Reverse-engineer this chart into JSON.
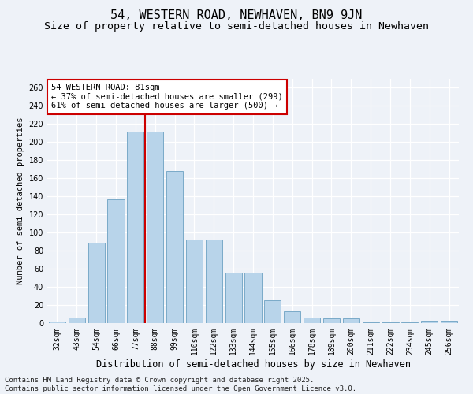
{
  "title": "54, WESTERN ROAD, NEWHAVEN, BN9 9JN",
  "subtitle": "Size of property relative to semi-detached houses in Newhaven",
  "xlabel": "Distribution of semi-detached houses by size in Newhaven",
  "ylabel": "Number of semi-detached properties",
  "categories": [
    "32sqm",
    "43sqm",
    "54sqm",
    "66sqm",
    "77sqm",
    "88sqm",
    "99sqm",
    "110sqm",
    "122sqm",
    "133sqm",
    "144sqm",
    "155sqm",
    "166sqm",
    "178sqm",
    "189sqm",
    "200sqm",
    "211sqm",
    "222sqm",
    "234sqm",
    "245sqm",
    "256sqm"
  ],
  "values": [
    2,
    6,
    89,
    137,
    212,
    212,
    168,
    92,
    92,
    56,
    56,
    25,
    13,
    6,
    5,
    5,
    1,
    1,
    1,
    3,
    3
  ],
  "bar_color": "#b8d4ea",
  "bar_edge_color": "#7aaac8",
  "vline_x_index": 4.5,
  "vline_color": "#cc0000",
  "annotation_title": "54 WESTERN ROAD: 81sqm",
  "annotation_line1": "← 37% of semi-detached houses are smaller (299)",
  "annotation_line2": "61% of semi-detached houses are larger (500) →",
  "annotation_box_facecolor": "#ffffff",
  "annotation_box_edgecolor": "#cc0000",
  "ylim": [
    0,
    270
  ],
  "yticks": [
    0,
    20,
    40,
    60,
    80,
    100,
    120,
    140,
    160,
    180,
    200,
    220,
    240,
    260
  ],
  "footnote1": "Contains HM Land Registry data © Crown copyright and database right 2025.",
  "footnote2": "Contains public sector information licensed under the Open Government Licence v3.0.",
  "bg_color": "#eef2f8",
  "grid_color": "#ffffff",
  "title_fontsize": 11,
  "subtitle_fontsize": 9.5,
  "xlabel_fontsize": 8.5,
  "ylabel_fontsize": 7.5,
  "tick_fontsize": 7,
  "annotation_fontsize": 7.5,
  "footnote_fontsize": 6.5
}
